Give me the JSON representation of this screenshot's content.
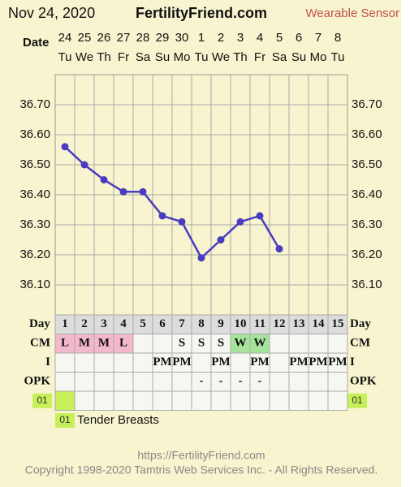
{
  "header": {
    "date": "Nov 24, 2020",
    "site": "FertilityFriend.com",
    "mode": "Wearable Sensor"
  },
  "chart_data": {
    "type": "line",
    "x_label": "Date",
    "categories": [
      "24",
      "25",
      "26",
      "27",
      "28",
      "29",
      "30",
      "1",
      "2",
      "3",
      "4",
      "5",
      "6",
      "7",
      "8"
    ],
    "weekdays": [
      "Tu",
      "We",
      "Th",
      "Fr",
      "Sa",
      "Su",
      "Mo",
      "Tu",
      "We",
      "Th",
      "Fr",
      "Sa",
      "Su",
      "Mo",
      "Tu"
    ],
    "series": [
      {
        "color": "#4a3cc0",
        "values": [
          36.56,
          36.5,
          36.45,
          36.41,
          36.41,
          36.33,
          36.31,
          36.19,
          36.25,
          36.31,
          36.33,
          36.22,
          null,
          null,
          null
        ]
      }
    ],
    "ylim": [
      36.0,
      36.8
    ],
    "yticks": [
      {
        "value": 36.1,
        "label": "36.10"
      },
      {
        "value": 36.2,
        "label": "36.20"
      },
      {
        "value": 36.3,
        "label": "36.30"
      },
      {
        "value": 36.4,
        "label": "36.40"
      },
      {
        "value": 36.5,
        "label": "36.50"
      },
      {
        "value": 36.6,
        "label": "36.60"
      },
      {
        "value": 36.7,
        "label": "36.70"
      }
    ],
    "grid": true
  },
  "table": {
    "day_label": "Day",
    "days": [
      "1",
      "2",
      "3",
      "4",
      "5",
      "6",
      "7",
      "8",
      "9",
      "10",
      "11",
      "12",
      "13",
      "14",
      "15"
    ],
    "rows": [
      {
        "label": "CM",
        "cells": [
          "L",
          "M",
          "M",
          "L",
          null,
          null,
          "S",
          "S",
          "S",
          "W",
          "W",
          null,
          null,
          null,
          null
        ]
      },
      {
        "label": "I",
        "cells": [
          null,
          null,
          null,
          null,
          null,
          "PM",
          "PM",
          null,
          "PM",
          null,
          "PM",
          null,
          "PM",
          "PM",
          "PM"
        ]
      },
      {
        "label": "OPK",
        "cells": [
          null,
          null,
          null,
          null,
          null,
          null,
          null,
          "-",
          "-",
          "-",
          "-",
          null,
          null,
          null,
          null
        ]
      }
    ],
    "cell_colors": {
      "L": "#f3b8cb",
      "M": "#f3b8cb",
      "W": "#a6e39b"
    }
  },
  "symptoms": {
    "code": "01",
    "text": "Tender Breasts",
    "marked": [
      true,
      false,
      false,
      false,
      false,
      false,
      false,
      false,
      false,
      false,
      false,
      false,
      false,
      false,
      false
    ],
    "color": "#c7ef5a"
  },
  "footer": {
    "url": "https://FertilityFriend.com",
    "copyright": "Copyright 1998-2020 Tamtris Web Services Inc. - All Rights Reserved."
  }
}
